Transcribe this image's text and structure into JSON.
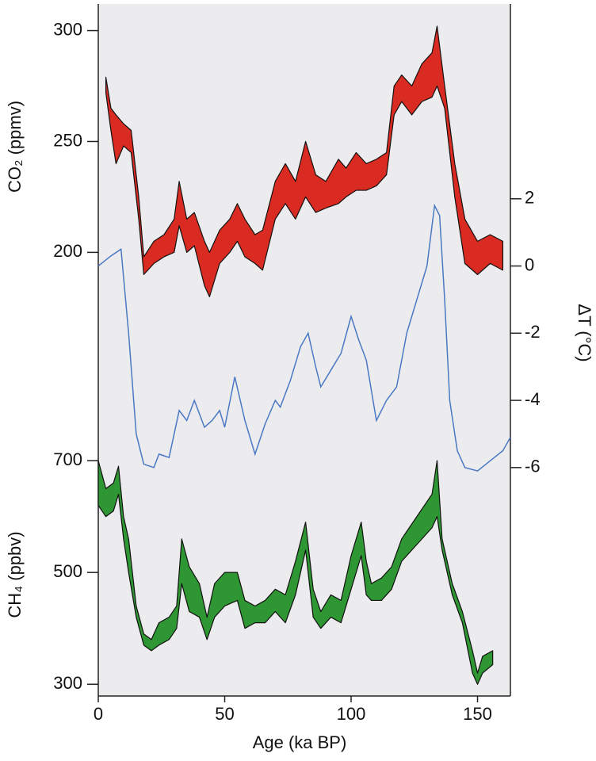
{
  "chart_data": {
    "type": "multi-axis",
    "x_label": "Age (ka BP)",
    "xlim": [
      0,
      163
    ],
    "xticks": [
      0,
      50,
      100,
      150
    ],
    "y_label": "CO₂ (ppmv)",
    "ylim": [
      0,
      312
    ],
    "yticks": [
      200,
      250,
      300
    ],
    "y2_label": "ΔT (°C)",
    "y2lim": [
      -12.8,
      7.8
    ],
    "y2ticks": [
      2,
      0,
      -2,
      -4,
      -6
    ],
    "y3_label": "CH₄ (ppbv)",
    "y3lim": [
      279,
      1517
    ],
    "y3ticks": [
      300,
      500,
      700
    ],
    "background": "#ececee",
    "series": [
      {
        "type": "band",
        "axis": "y",
        "color": "#d92b22",
        "x": [
          3,
          5,
          7,
          10,
          13,
          16,
          18,
          22,
          26,
          30,
          32,
          35,
          38,
          42,
          44,
          48,
          52,
          55,
          58,
          62,
          65,
          70,
          74,
          78,
          82,
          86,
          90,
          95,
          98,
          102,
          106,
          110,
          114,
          117,
          120,
          124,
          128,
          132,
          134,
          137,
          141,
          145,
          150,
          155,
          160
        ],
        "low": [
          272,
          255,
          240,
          248,
          245,
          215,
          190,
          195,
          198,
          200,
          212,
          200,
          203,
          185,
          180,
          195,
          200,
          205,
          198,
          195,
          192,
          215,
          222,
          215,
          225,
          218,
          220,
          222,
          225,
          228,
          228,
          230,
          235,
          262,
          268,
          262,
          268,
          270,
          275,
          265,
          225,
          195,
          190,
          195,
          192
        ],
        "high": [
          279,
          265,
          262,
          258,
          255,
          225,
          198,
          205,
          208,
          215,
          232,
          215,
          218,
          205,
          200,
          210,
          215,
          222,
          215,
          208,
          210,
          232,
          240,
          232,
          250,
          235,
          232,
          242,
          238,
          245,
          240,
          242,
          245,
          275,
          280,
          275,
          285,
          290,
          302,
          275,
          240,
          215,
          205,
          208,
          205
        ]
      },
      {
        "type": "line",
        "axis": "y2",
        "color": "#4a78c4",
        "x": [
          0,
          5,
          9,
          12,
          15,
          18,
          22,
          24,
          28,
          32,
          35,
          38,
          42,
          45,
          48,
          50,
          54,
          58,
          62,
          66,
          70,
          72,
          76,
          80,
          83,
          86,
          88,
          92,
          96,
          100,
          103,
          106,
          110,
          114,
          118,
          122,
          126,
          130,
          133,
          135,
          137,
          139,
          142,
          145,
          150,
          155,
          160,
          163
        ],
        "values": [
          0,
          0.3,
          0.5,
          -2,
          -5,
          -5.9,
          -6,
          -5.6,
          -5.7,
          -4.3,
          -4.6,
          -4,
          -4.8,
          -4.6,
          -4.3,
          -4.8,
          -3.3,
          -4.6,
          -5.6,
          -4.7,
          -4,
          -4.2,
          -3.4,
          -2.4,
          -2,
          -3,
          -3.6,
          -3.1,
          -2.6,
          -1.5,
          -2.2,
          -2.8,
          -4.6,
          -4,
          -3.6,
          -2,
          -1,
          0,
          1.8,
          1.5,
          -1,
          -4,
          -5.5,
          -6,
          -6.1,
          -5.8,
          -5.5,
          -5.1
        ]
      },
      {
        "type": "band",
        "axis": "y3",
        "color": "#2e9632",
        "x": [
          0,
          3,
          6,
          8,
          10,
          12,
          15,
          18,
          21,
          24,
          28,
          31,
          33,
          36,
          40,
          43,
          46,
          50,
          55,
          58,
          62,
          66,
          70,
          74,
          78,
          82,
          85,
          88,
          92,
          96,
          100,
          104,
          106,
          108,
          112,
          116,
          120,
          126,
          132,
          134,
          136,
          140,
          144,
          148,
          150,
          152,
          156
        ],
        "low": [
          620,
          600,
          610,
          640,
          560,
          500,
          420,
          370,
          360,
          370,
          380,
          400,
          480,
          430,
          420,
          380,
          420,
          440,
          450,
          400,
          410,
          410,
          430,
          410,
          460,
          540,
          420,
          400,
          420,
          410,
          470,
          530,
          460,
          450,
          450,
          470,
          520,
          550,
          580,
          600,
          540,
          460,
          410,
          320,
          300,
          320,
          335
        ],
        "high": [
          700,
          650,
          660,
          690,
          600,
          560,
          440,
          390,
          380,
          410,
          420,
          440,
          560,
          510,
          480,
          420,
          480,
          500,
          500,
          450,
          440,
          450,
          470,
          460,
          520,
          590,
          470,
          430,
          460,
          450,
          530,
          590,
          520,
          480,
          490,
          510,
          560,
          600,
          640,
          700,
          560,
          480,
          430,
          360,
          320,
          350,
          360
        ]
      }
    ]
  }
}
